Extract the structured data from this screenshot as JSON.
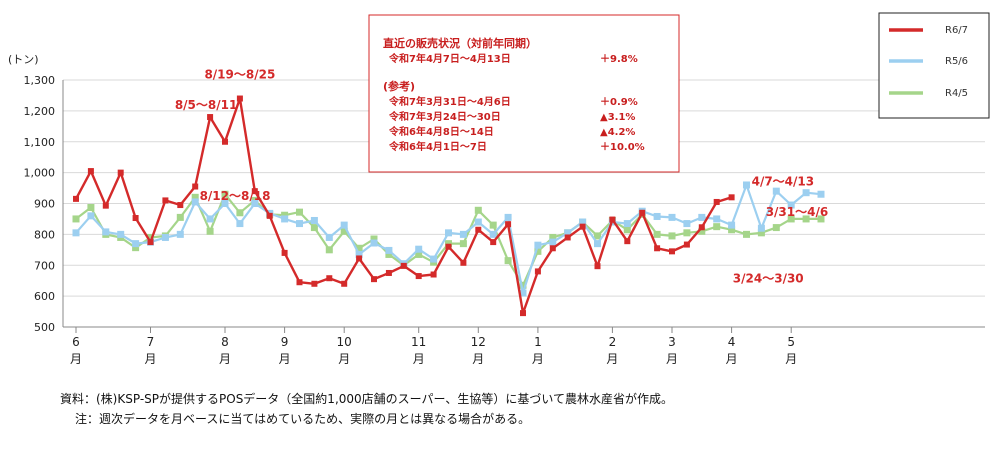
{
  "chart_data": {
    "type": "line",
    "ylabel": "(トン)",
    "ylim": [
      500,
      1300
    ],
    "yticks": [
      500,
      600,
      700,
      800,
      900,
      "1,000",
      "1,100",
      "1,200",
      "1,300"
    ],
    "month_labels": [
      {
        "num": "6",
        "suffix": "月",
        "week": 0
      },
      {
        "num": "7",
        "suffix": "月",
        "week": 5
      },
      {
        "num": "8",
        "suffix": "月",
        "week": 10
      },
      {
        "num": "9",
        "suffix": "月",
        "week": 14
      },
      {
        "num": "10",
        "suffix": "月",
        "week": 18
      },
      {
        "num": "11",
        "suffix": "月",
        "week": 23
      },
      {
        "num": "12",
        "suffix": "月",
        "week": 27
      },
      {
        "num": "1",
        "suffix": "月",
        "week": 31
      },
      {
        "num": "2",
        "suffix": "月",
        "week": 36
      },
      {
        "num": "3",
        "suffix": "月",
        "week": 40
      },
      {
        "num": "4",
        "suffix": "月",
        "week": 44
      },
      {
        "num": "5",
        "suffix": "月",
        "week": 48
      }
    ],
    "series": [
      {
        "name": "R6/7",
        "color": "#d42a2a",
        "values": [
          915,
          1005,
          893,
          1000,
          853,
          775,
          910,
          895,
          955,
          1180,
          1100,
          1240,
          940,
          860,
          740,
          645,
          640,
          658,
          640,
          722,
          655,
          675,
          698,
          665,
          670,
          760,
          708,
          815,
          775,
          833,
          545,
          680,
          755,
          790,
          825,
          697,
          848,
          778,
          870,
          755,
          745,
          767,
          823,
          905,
          920
        ]
      },
      {
        "name": "R5/6",
        "color": "#9ccff0",
        "values": [
          805,
          860,
          808,
          800,
          770,
          775,
          790,
          800,
          905,
          850,
          900,
          835,
          900,
          868,
          850,
          835,
          845,
          790,
          830,
          735,
          772,
          748,
          705,
          752,
          720,
          805,
          800,
          840,
          800,
          855,
          610,
          765,
          775,
          805,
          840,
          770,
          840,
          835,
          875,
          858,
          855,
          835,
          855,
          850,
          830,
          960,
          820,
          940,
          895,
          935,
          930
        ]
      },
      {
        "name": "R4/5",
        "color": "#a5d58a",
        "values": [
          850,
          887,
          800,
          790,
          757,
          790,
          795,
          855,
          920,
          810,
          930,
          870,
          910,
          865,
          862,
          872,
          822,
          750,
          810,
          755,
          785,
          735,
          700,
          735,
          710,
          770,
          770,
          878,
          830,
          715,
          635,
          745,
          790,
          805,
          840,
          795,
          845,
          815,
          865,
          800,
          795,
          805,
          810,
          825,
          815,
          800,
          805,
          822,
          850,
          850,
          850
        ]
      }
    ],
    "annotations": [
      {
        "text": "8/19～8/25",
        "week": 11,
        "value": 1240
      },
      {
        "text": "8/5～8/11",
        "week": 9,
        "value": 1180
      },
      {
        "text": "8/12～8/18",
        "week": 10,
        "value": 1100
      },
      {
        "text": "4/7～4/13",
        "week": 44,
        "value": 920
      },
      {
        "text": "3/31～4/6",
        "week": 43,
        "value": 905
      },
      {
        "text": "3/24～3/30",
        "week": 42,
        "value": 823
      }
    ],
    "legend": {
      "placement": "top-right",
      "entries": [
        "R6/7",
        "R5/6",
        "R4/5"
      ]
    },
    "summary_box": {
      "title": "直近の販売状況（対前年同期）",
      "main_period": "令和7年4月7日～4月13日",
      "main_value": "＋9.8%",
      "ref_title": "(参考)",
      "refs": [
        {
          "period": "令和7年3月31日～4月6日",
          "value": "＋0.9%"
        },
        {
          "period": "令和7年3月24日～30日",
          "value": "▲3.1%"
        },
        {
          "period": "令和6年4月8日～14日",
          "value": "▲4.2%"
        },
        {
          "period": "令和6年4月1日～7日",
          "value": "＋10.0%"
        }
      ]
    },
    "footnotes": [
      "資料：(株)KSP-SPが提供するPOSデータ（全国約1,000店舗のスーパー、生協等）に基づいて農林水産省が作成。",
      "注：週次データを月ベースに当てはめているため、実際の月とは異なる場合がある。"
    ]
  }
}
